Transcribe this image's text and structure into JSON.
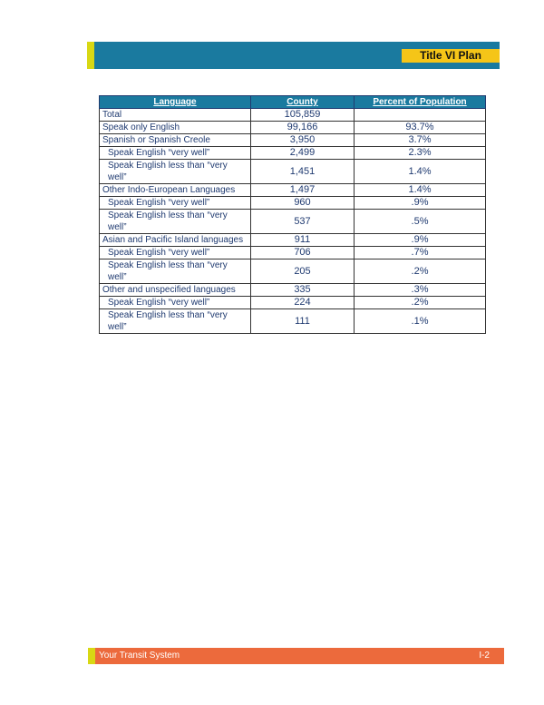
{
  "header": {
    "title": "Title VI Plan"
  },
  "table": {
    "columns": [
      "Language",
      "County",
      "Percent of Population"
    ],
    "rows": [
      {
        "language": "Total",
        "county": "105,859",
        "percent": "",
        "indent": false
      },
      {
        "language": "Speak only English",
        "county": "99,166",
        "percent": "93.7%",
        "indent": false
      },
      {
        "language": "Spanish or Spanish Creole",
        "county": "3,950",
        "percent": "3.7%",
        "indent": false
      },
      {
        "language": "Speak English “very well”",
        "county": "2,499",
        "percent": "2.3%",
        "indent": true
      },
      {
        "language": "Speak English less than “very well”",
        "county": "1,451",
        "percent": "1.4%",
        "indent": true
      },
      {
        "language": "Other Indo-European Languages",
        "county": "1,497",
        "percent": "1.4%",
        "indent": false
      },
      {
        "language": "Speak English “very well”",
        "county": "960",
        "percent": ".9%",
        "indent": true
      },
      {
        "language": "Speak English less than “very well”",
        "county": "537",
        "percent": ".5%",
        "indent": true
      },
      {
        "language": "Asian and Pacific Island languages",
        "county": "911",
        "percent": ".9%",
        "indent": false
      },
      {
        "language": "Speak English “very well”",
        "county": "706",
        "percent": ".7%",
        "indent": true
      },
      {
        "language": "Speak English less than “very well”",
        "county": "205",
        "percent": ".2%",
        "indent": true
      },
      {
        "language": "Other and unspecified languages",
        "county": "335",
        "percent": ".3%",
        "indent": false
      },
      {
        "language": "Speak English “very well”",
        "county": "224",
        "percent": ".2%",
        "indent": true
      },
      {
        "language": "Speak English less than “very well”",
        "county": "111",
        "percent": ".1%",
        "indent": true
      }
    ]
  },
  "footer": {
    "left": "Your Transit System",
    "page": "I-2"
  }
}
